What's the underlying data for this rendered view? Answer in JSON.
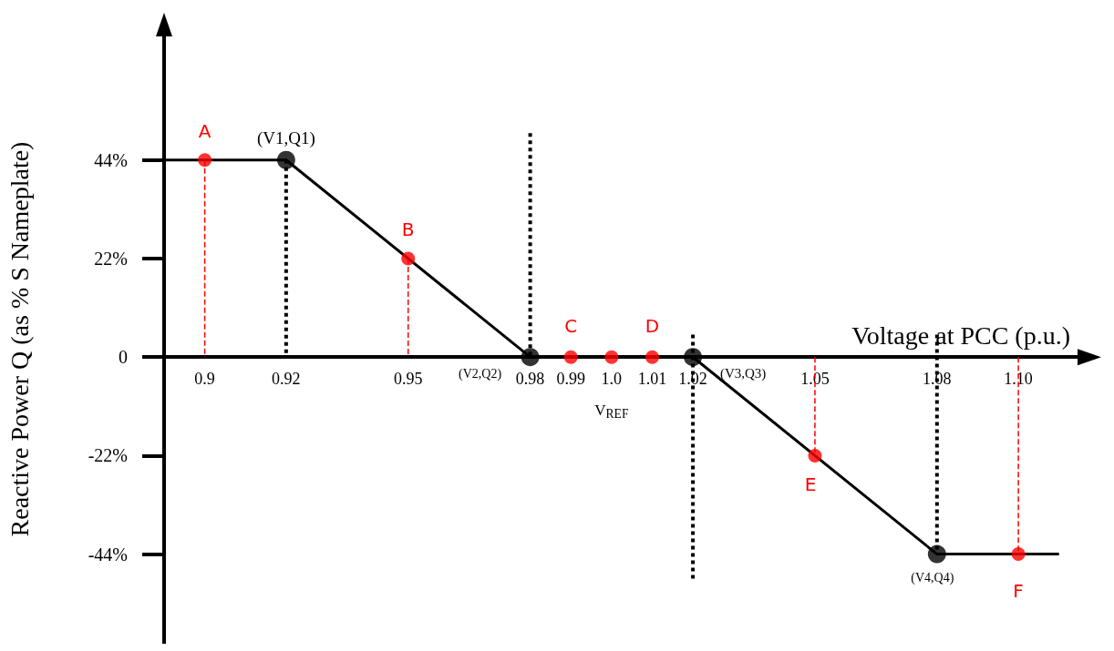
{
  "chart_data": {
    "type": "line",
    "xlabel": "Voltage at PCC (p.u.)",
    "ylabel": "Reactive Power Q (as % S Nameplate)",
    "xlim": [
      0.89,
      1.115
    ],
    "ylim": [
      -64,
      72
    ],
    "xticks": [
      0.9,
      0.92,
      0.95,
      0.98,
      0.99,
      {
        "value": 1,
        "label": "1.0"
      },
      1.01,
      1.02,
      1.05,
      1.08,
      {
        "value": 1.1,
        "label": "1.10"
      }
    ],
    "yticks": [
      {
        "value": -44,
        "label": "-44%"
      },
      {
        "value": -22,
        "label": "-22%"
      },
      0,
      {
        "value": 22,
        "label": "22%"
      },
      {
        "value": 44,
        "label": "44%"
      }
    ],
    "series": [
      {
        "color": "#000000",
        "marker": "none",
        "line_style": "solid",
        "x": [
          0.89,
          0.92,
          0.98,
          1.02,
          1.08,
          1.11
        ],
        "values": [
          44,
          44,
          0,
          0,
          -44,
          -44
        ]
      },
      {
        "type": "line",
        "color": "#000000",
        "marker": "none",
        "line_style": "dotted",
        "x": [
          0.92,
          0.92
        ],
        "values": [
          44,
          0
        ]
      },
      {
        "type": "line",
        "color": "#000000",
        "marker": "none",
        "line_style": "dotted",
        "x": [
          0.98,
          0.98
        ],
        "values": [
          50,
          0
        ]
      },
      {
        "type": "line",
        "color": "#000000",
        "marker": "none",
        "line_style": "dotted",
        "x": [
          1.02,
          1.02
        ],
        "values": [
          5,
          -50
        ]
      },
      {
        "type": "line",
        "color": "#000000",
        "marker": "none",
        "line_style": "dotted",
        "x": [
          1.08,
          1.08
        ],
        "values": [
          5,
          -44
        ]
      },
      {
        "type": "line",
        "color": "#ff0000",
        "marker": "none",
        "line_style": "dashed",
        "x": [
          0.9,
          0.9
        ],
        "values": [
          44,
          0
        ]
      },
      {
        "type": "line",
        "color": "#ff0000",
        "marker": "none",
        "line_style": "dashed",
        "x": [
          0.95,
          0.95
        ],
        "values": [
          22,
          0
        ]
      },
      {
        "type": "line",
        "color": "#ff0000",
        "marker": "none",
        "line_style": "dashed",
        "x": [
          1.05,
          1.05
        ],
        "values": [
          0,
          -22
        ]
      },
      {
        "type": "line",
        "color": "#ff0000",
        "marker": "none",
        "line_style": "dashed",
        "x": [
          1.1,
          1.1
        ],
        "values": [
          0,
          -44
        ]
      },
      {
        "type": "scatter",
        "color": "#000000",
        "marker": "circle",
        "x": [
          0.92,
          0.98,
          1.02,
          1.08
        ],
        "values": [
          44,
          0,
          0,
          -44
        ]
      },
      {
        "type": "scatter",
        "color": "#ff0000",
        "marker": "circle",
        "x": [
          0.9,
          0.95,
          0.99,
          1.0,
          1.01,
          1.05,
          1.1
        ],
        "values": [
          44,
          22,
          0,
          0,
          0,
          -22,
          -44
        ]
      }
    ],
    "annotations": [
      {
        "text": "A",
        "x": 0.9,
        "y": 44
      },
      {
        "text": "(V1,Q1)",
        "x": 0.92,
        "y": 44
      },
      {
        "text": "B",
        "x": 0.95,
        "y": 22
      },
      {
        "text": "C",
        "x": 0.99,
        "y": 0
      },
      {
        "text": "D",
        "x": 1.01,
        "y": 0
      },
      {
        "text": "E",
        "x": 1.05,
        "y": -22
      },
      {
        "text": "F",
        "x": 1.1,
        "y": -44
      },
      {
        "text": "(V2,Q2)",
        "x": 0.98,
        "y": 0
      },
      {
        "text": "(V3,Q3)",
        "x": 1.02,
        "y": 0
      },
      {
        "text": "(V4,Q4)",
        "x": 1.08,
        "y": -44
      },
      {
        "text": "V$_{REF}$",
        "x": 1.0,
        "y": 0
      }
    ]
  }
}
